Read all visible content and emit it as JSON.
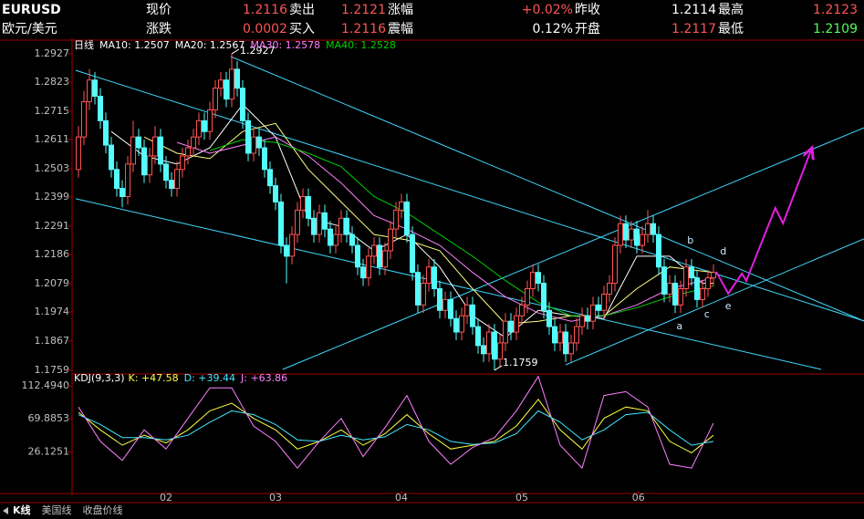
{
  "header": {
    "symbol": "EURUSD",
    "name": "欧元/美元",
    "rows": [
      [
        [
          "现价",
          "1.2116"
        ],
        [
          "卖出",
          "1.2121"
        ],
        [
          "涨幅",
          "+0.02%"
        ],
        [
          "昨收",
          "1.2114"
        ],
        [
          "最高",
          "1.2123"
        ]
      ],
      [
        [
          "涨跌",
          "0.0002"
        ],
        [
          "买入",
          "1.2116"
        ],
        [
          "震幅",
          "0.12%"
        ],
        [
          "开盘",
          "1.2117"
        ],
        [
          "最低",
          "1.2109"
        ]
      ]
    ]
  },
  "tabs": [
    "K线",
    "美国线",
    "收盘价线"
  ],
  "chart_data": [
    {
      "type": "candlestick",
      "title": "日线",
      "up_color": "#ff5454",
      "down_color": "#54fcfc",
      "xlim": [
        -0.5,
        143.5
      ],
      "ylim": [
        1.1752,
        1.2974
      ],
      "yticks": [
        1.2927,
        1.2823,
        1.2715,
        1.2611,
        1.2503,
        1.2399,
        1.2291,
        1.2186,
        1.2079,
        1.1974,
        1.1867,
        1.1759
      ],
      "candles": [
        [
          1.25,
          1.266,
          1.247,
          1.262
        ],
        [
          1.262,
          1.279,
          1.259,
          1.275
        ],
        [
          1.275,
          1.287,
          1.272,
          1.283
        ],
        [
          1.283,
          1.286,
          1.274,
          1.277
        ],
        [
          1.277,
          1.28,
          1.265,
          1.268
        ],
        [
          1.268,
          1.271,
          1.256,
          1.259
        ],
        [
          1.259,
          1.262,
          1.247,
          1.25
        ],
        [
          1.25,
          1.253,
          1.24,
          1.243
        ],
        [
          1.243,
          1.246,
          1.236,
          1.24
        ],
        [
          1.24,
          1.255,
          1.237,
          1.252
        ],
        [
          1.252,
          1.268,
          1.249,
          1.262
        ],
        [
          1.262,
          1.265,
          1.255,
          1.258
        ],
        [
          1.258,
          1.261,
          1.245,
          1.248
        ],
        [
          1.248,
          1.258,
          1.245,
          1.255
        ],
        [
          1.255,
          1.266,
          1.252,
          1.262
        ],
        [
          1.262,
          1.265,
          1.249,
          1.252
        ],
        [
          1.252,
          1.255,
          1.243,
          1.246
        ],
        [
          1.246,
          1.249,
          1.24,
          1.243
        ],
        [
          1.243,
          1.253,
          1.24,
          1.25
        ],
        [
          1.25,
          1.258,
          1.247,
          1.255
        ],
        [
          1.255,
          1.261,
          1.252,
          1.258
        ],
        [
          1.258,
          1.265,
          1.255,
          1.262
        ],
        [
          1.262,
          1.271,
          1.259,
          1.268
        ],
        [
          1.268,
          1.271,
          1.261,
          1.264
        ],
        [
          1.264,
          1.275,
          1.261,
          1.272
        ],
        [
          1.272,
          1.283,
          1.269,
          1.28
        ],
        [
          1.28,
          1.286,
          1.277,
          1.283
        ],
        [
          1.283,
          1.286,
          1.273,
          1.276
        ],
        [
          1.276,
          1.2927,
          1.273,
          1.287
        ],
        [
          1.287,
          1.29,
          1.277,
          1.28
        ],
        [
          1.28,
          1.283,
          1.265,
          1.268
        ],
        [
          1.268,
          1.271,
          1.253,
          1.256
        ],
        [
          1.256,
          1.265,
          1.253,
          1.262
        ],
        [
          1.262,
          1.265,
          1.255,
          1.258
        ],
        [
          1.258,
          1.261,
          1.247,
          1.25
        ],
        [
          1.25,
          1.253,
          1.241,
          1.244
        ],
        [
          1.244,
          1.247,
          1.235,
          1.238
        ],
        [
          1.238,
          1.241,
          1.219,
          1.222
        ],
        [
          1.222,
          1.225,
          1.208,
          1.218
        ],
        [
          1.218,
          1.229,
          1.215,
          1.226
        ],
        [
          1.226,
          1.238,
          1.223,
          1.235
        ],
        [
          1.235,
          1.243,
          1.232,
          1.24
        ],
        [
          1.24,
          1.243,
          1.229,
          1.232
        ],
        [
          1.232,
          1.235,
          1.223,
          1.226
        ],
        [
          1.226,
          1.237,
          1.223,
          1.234
        ],
        [
          1.234,
          1.237,
          1.225,
          1.228
        ],
        [
          1.228,
          1.231,
          1.219,
          1.222
        ],
        [
          1.222,
          1.229,
          1.219,
          1.226
        ],
        [
          1.226,
          1.235,
          1.223,
          1.232
        ],
        [
          1.232,
          1.235,
          1.223,
          1.226
        ],
        [
          1.226,
          1.229,
          1.219,
          1.222
        ],
        [
          1.222,
          1.225,
          1.211,
          1.214
        ],
        [
          1.214,
          1.217,
          1.207,
          1.21
        ],
        [
          1.21,
          1.221,
          1.207,
          1.218
        ],
        [
          1.218,
          1.225,
          1.215,
          1.222
        ],
        [
          1.222,
          1.225,
          1.211,
          1.214
        ],
        [
          1.214,
          1.223,
          1.211,
          1.22
        ],
        [
          1.22,
          1.231,
          1.217,
          1.228
        ],
        [
          1.228,
          1.238,
          1.225,
          1.235
        ],
        [
          1.235,
          1.241,
          1.232,
          1.238
        ],
        [
          1.238,
          1.241,
          1.223,
          1.226
        ],
        [
          1.226,
          1.229,
          1.209,
          1.212
        ],
        [
          1.212,
          1.215,
          1.197,
          1.2
        ],
        [
          1.2,
          1.211,
          1.197,
          1.208
        ],
        [
          1.208,
          1.217,
          1.205,
          1.214
        ],
        [
          1.214,
          1.217,
          1.203,
          1.206
        ],
        [
          1.206,
          1.209,
          1.195,
          1.198
        ],
        [
          1.198,
          1.205,
          1.195,
          1.202
        ],
        [
          1.202,
          1.205,
          1.192,
          1.195
        ],
        [
          1.195,
          1.198,
          1.187,
          1.19
        ],
        [
          1.19,
          1.199,
          1.187,
          1.196
        ],
        [
          1.196,
          1.203,
          1.193,
          1.2
        ],
        [
          1.2,
          1.203,
          1.189,
          1.192
        ],
        [
          1.192,
          1.195,
          1.182,
          1.185
        ],
        [
          1.185,
          1.188,
          1.179,
          1.182
        ],
        [
          1.182,
          1.193,
          1.179,
          1.19
        ],
        [
          1.19,
          1.193,
          1.1759,
          1.18
        ],
        [
          1.18,
          1.189,
          1.177,
          1.186
        ],
        [
          1.186,
          1.197,
          1.183,
          1.194
        ],
        [
          1.194,
          1.197,
          1.187,
          1.19
        ],
        [
          1.19,
          1.199,
          1.187,
          1.196
        ],
        [
          1.196,
          1.203,
          1.193,
          1.2
        ],
        [
          1.2,
          1.209,
          1.197,
          1.206
        ],
        [
          1.206,
          1.215,
          1.203,
          1.212
        ],
        [
          1.212,
          1.215,
          1.205,
          1.208
        ],
        [
          1.208,
          1.211,
          1.195,
          1.198
        ],
        [
          1.198,
          1.201,
          1.189,
          1.192
        ],
        [
          1.192,
          1.195,
          1.183,
          1.186
        ],
        [
          1.186,
          1.193,
          1.183,
          1.19
        ],
        [
          1.19,
          1.193,
          1.179,
          1.182
        ],
        [
          1.182,
          1.189,
          1.179,
          1.186
        ],
        [
          1.186,
          1.195,
          1.183,
          1.192
        ],
        [
          1.192,
          1.199,
          1.189,
          1.196
        ],
        [
          1.196,
          1.199,
          1.191,
          1.194
        ],
        [
          1.194,
          1.203,
          1.191,
          1.2
        ],
        [
          1.2,
          1.203,
          1.195,
          1.198
        ],
        [
          1.198,
          1.207,
          1.195,
          1.204
        ],
        [
          1.204,
          1.211,
          1.201,
          1.208
        ],
        [
          1.208,
          1.225,
          1.205,
          1.222
        ],
        [
          1.222,
          1.233,
          1.219,
          1.23
        ],
        [
          1.23,
          1.233,
          1.221,
          1.224
        ],
        [
          1.224,
          1.231,
          1.221,
          1.228
        ],
        [
          1.228,
          1.231,
          1.219,
          1.222
        ],
        [
          1.222,
          1.229,
          1.219,
          1.226
        ],
        [
          1.226,
          1.235,
          1.223,
          1.23
        ],
        [
          1.23,
          1.233,
          1.223,
          1.226
        ],
        [
          1.226,
          1.229,
          1.211,
          1.214
        ],
        [
          1.214,
          1.217,
          1.201,
          1.204
        ],
        [
          1.204,
          1.211,
          1.201,
          1.208
        ],
        [
          1.208,
          1.211,
          1.197,
          1.2
        ],
        [
          1.2,
          1.209,
          1.197,
          1.206
        ],
        [
          1.206,
          1.217,
          1.203,
          1.214
        ],
        [
          1.214,
          1.217,
          1.207,
          1.21
        ],
        [
          1.21,
          1.213,
          1.199,
          1.202
        ],
        [
          1.202,
          1.209,
          1.199,
          1.206
        ],
        [
          1.206,
          1.213,
          1.203,
          1.21
        ],
        [
          1.21,
          1.215,
          1.207,
          1.212
        ]
      ],
      "high_label": {
        "index": 28,
        "label": "1.2927"
      },
      "low_label": {
        "index": 76,
        "label": "1.1759"
      },
      "series": [
        {
          "name": "MA10: 1.2507",
          "color": "#ffffff",
          "x": [
            6,
            12,
            18,
            24,
            30,
            36,
            42,
            48,
            54,
            60,
            66,
            72,
            78,
            84,
            90,
            96,
            102,
            108,
            114,
            116
          ],
          "values": [
            1.264,
            1.255,
            1.252,
            1.258,
            1.274,
            1.262,
            1.232,
            1.229,
            1.22,
            1.226,
            1.214,
            1.196,
            1.188,
            1.198,
            1.196,
            1.195,
            1.218,
            1.218,
            1.208,
            1.208
          ]
        },
        {
          "name": "MA20: 1.2567",
          "color": "#ffff80",
          "x": [
            12,
            18,
            24,
            30,
            36,
            42,
            48,
            54,
            60,
            66,
            72,
            78,
            84,
            90,
            96,
            102,
            108,
            116
          ],
          "values": [
            1.262,
            1.256,
            1.254,
            1.264,
            1.267,
            1.25,
            1.238,
            1.226,
            1.224,
            1.22,
            1.206,
            1.193,
            1.194,
            1.196,
            1.196,
            1.206,
            1.214,
            1.212
          ]
        },
        {
          "name": "MA30: 1.2578",
          "color": "#ff80ff",
          "x": [
            18,
            24,
            30,
            36,
            42,
            48,
            54,
            60,
            66,
            72,
            78,
            84,
            90,
            96,
            102,
            108,
            116
          ],
          "values": [
            1.26,
            1.256,
            1.259,
            1.262,
            1.255,
            1.245,
            1.233,
            1.228,
            1.222,
            1.212,
            1.203,
            1.197,
            1.194,
            1.196,
            1.2,
            1.206,
            1.21
          ]
        },
        {
          "name": "MA40: 1.2528",
          "color": "#00d000",
          "x": [
            24,
            30,
            36,
            42,
            48,
            54,
            60,
            66,
            72,
            78,
            84,
            90,
            96,
            102,
            108,
            116
          ],
          "values": [
            1.257,
            1.261,
            1.26,
            1.256,
            1.251,
            1.24,
            1.234,
            1.226,
            1.218,
            1.209,
            1.201,
            1.196,
            1.196,
            1.199,
            1.203,
            1.207
          ]
        }
      ],
      "trendline_color": "#40d8ff",
      "trendlines": [
        {
          "x": [
            -0.5,
            143.5
          ],
          "values": [
            1.2866,
            1.1941
          ]
        },
        {
          "x": [
            27.8,
            143.5
          ],
          "values": [
            1.2917,
            1.1941
          ]
        },
        {
          "x": [
            -0.5,
            135.7
          ],
          "values": [
            1.2392,
            1.1762
          ]
        },
        {
          "x": [
            37.3,
            143.5
          ],
          "values": [
            1.1762,
            1.2654
          ]
        },
        {
          "x": [
            89,
            143.5
          ],
          "values": [
            1.1779,
            1.2244
          ]
        }
      ],
      "projection": {
        "color": "#e020e0",
        "x": [
          116.5,
          118.7,
          121.2,
          122,
          127.3,
          128.7,
          134
        ],
        "values": [
          1.2123,
          1.2042,
          1.2116,
          1.2089,
          1.2358,
          1.2301,
          1.258
        ]
      },
      "annotations": [
        {
          "text": "a",
          "x": 109.8,
          "y": 1.1921
        },
        {
          "text": "b",
          "x": 111.8,
          "y": 1.2237
        },
        {
          "text": "c",
          "x": 114.8,
          "y": 1.1964
        },
        {
          "text": "d",
          "x": 117.8,
          "y": 1.2197
        },
        {
          "text": "e",
          "x": 118.7,
          "y": 1.1995
        }
      ]
    },
    {
      "type": "line",
      "title": "KDJ(9,3,3)",
      "xlim": [
        -0.5,
        143.5
      ],
      "ylim": [
        -27,
        127
      ],
      "yticks": [
        {
          "value": 112.494,
          "label": "112.4940"
        },
        {
          "value": 69.8853,
          "label": "69.8853"
        },
        {
          "value": 26.1251,
          "label": "26.1251"
        }
      ],
      "xticks": [
        {
          "value": 16,
          "label": "02"
        },
        {
          "value": 36,
          "label": "03"
        },
        {
          "value": 59,
          "label": "04"
        },
        {
          "value": 81,
          "label": "05"
        },
        {
          "value": 102.3,
          "label": "06"
        }
      ],
      "x": [
        0,
        4,
        8,
        12,
        16,
        20,
        24,
        28,
        32,
        36,
        40,
        44,
        48,
        52,
        56,
        60,
        64,
        68,
        72,
        76,
        80,
        84,
        88,
        92,
        96,
        100,
        104,
        108,
        112,
        116
      ],
      "series": [
        {
          "name": "K: +47.58",
          "color": "#ffff40",
          "values": [
            78,
            55,
            35,
            48,
            38,
            55,
            80,
            90,
            70,
            55,
            30,
            40,
            55,
            35,
            50,
            75,
            50,
            30,
            35,
            40,
            60,
            95,
            55,
            30,
            70,
            85,
            80,
            40,
            25,
            48
          ]
        },
        {
          "name": "D: +39.44",
          "color": "#40e8ff",
          "values": [
            75,
            62,
            45,
            45,
            42,
            48,
            65,
            80,
            75,
            62,
            42,
            40,
            48,
            42,
            46,
            62,
            55,
            40,
            36,
            38,
            50,
            80,
            65,
            42,
            55,
            75,
            78,
            55,
            35,
            40
          ]
        },
        {
          "name": "J: +63.86",
          "color": "#ff80ff",
          "values": [
            85,
            40,
            15,
            55,
            30,
            70,
            110,
            110,
            60,
            40,
            5,
            40,
            70,
            20,
            58,
            100,
            40,
            10,
            32,
            45,
            80,
            125,
            35,
            5,
            100,
            105,
            85,
            10,
            5,
            64
          ]
        }
      ]
    }
  ]
}
